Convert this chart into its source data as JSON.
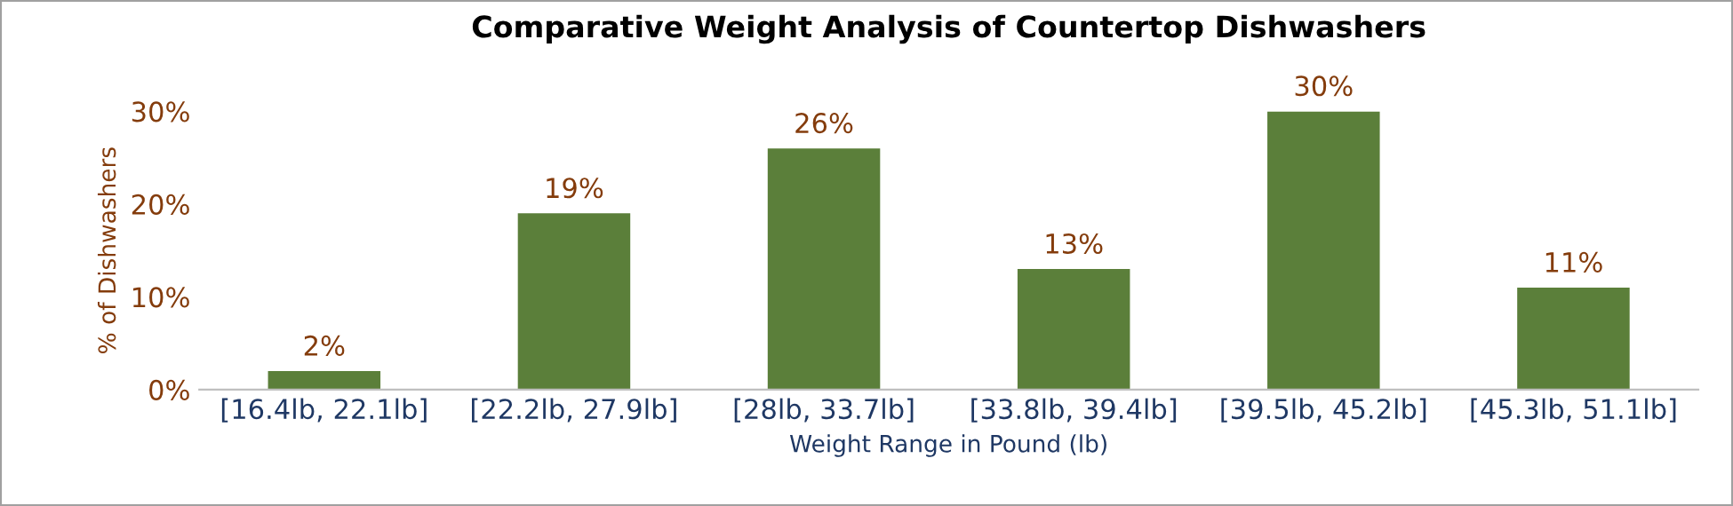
{
  "chart_data": {
    "type": "bar",
    "title": "Comparative Weight Analysis of Countertop Dishwashers",
    "xlabel": "Weight Range in Pound (lb)",
    "ylabel": "% of Dishwashers",
    "categories": [
      "[16.4lb, 22.1lb]",
      "[22.2lb, 27.9lb]",
      "[28lb, 33.7lb]",
      "[33.8lb, 39.4lb]",
      "[39.5lb, 45.2lb]",
      "[45.3lb, 51.1lb]"
    ],
    "values": [
      2,
      19,
      26,
      13,
      30,
      11
    ],
    "value_labels": [
      "2%",
      "19%",
      "26%",
      "13%",
      "30%",
      "11%"
    ],
    "color": "#5b7f3a",
    "ylim": [
      0,
      30
    ],
    "yticks": [
      {
        "value": 0,
        "label": "0%"
      },
      {
        "value": 10,
        "label": "10%"
      },
      {
        "value": 20,
        "label": "20%"
      },
      {
        "value": 30,
        "label": "30%"
      }
    ],
    "grid": false,
    "legend": false
  }
}
